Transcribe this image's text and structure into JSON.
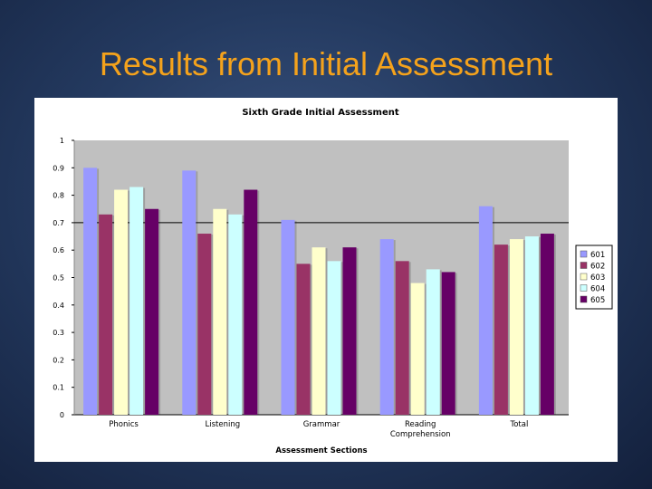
{
  "slide": {
    "title": "Results from Initial Assessment"
  },
  "colors": {
    "title": "#f4a21c",
    "plot_background": "#c0c0c0",
    "series": [
      "#9999ff",
      "#993366",
      "#ffffcc",
      "#ccffff",
      "#660066"
    ]
  },
  "chart_data": {
    "type": "bar",
    "title": "Sixth Grade Initial Assessment",
    "xlabel": "Assessment Sections",
    "ylabel": "",
    "ylim": [
      0,
      1
    ],
    "yticks": [
      "0",
      "0.1",
      "0.2",
      "0.3",
      "0.4",
      "0.5",
      "0.6",
      "0.7",
      "0.8",
      "0.9",
      "1"
    ],
    "categories": [
      [
        "Phonics"
      ],
      [
        "Listening"
      ],
      [
        "Grammar"
      ],
      [
        "Reading",
        "Comprehension"
      ],
      [
        "Total"
      ]
    ],
    "series": [
      {
        "name": "601",
        "values": [
          0.9,
          0.89,
          0.71,
          0.64,
          0.76
        ]
      },
      {
        "name": "602",
        "values": [
          0.73,
          0.66,
          0.55,
          0.56,
          0.62
        ]
      },
      {
        "name": "603",
        "values": [
          0.82,
          0.75,
          0.61,
          0.48,
          0.64
        ]
      },
      {
        "name": "604",
        "values": [
          0.83,
          0.73,
          0.56,
          0.53,
          0.65
        ]
      },
      {
        "name": "605",
        "values": [
          0.75,
          0.82,
          0.61,
          0.52,
          0.66
        ]
      }
    ],
    "grid": false,
    "reference_line": 0.7,
    "legend": "right"
  }
}
